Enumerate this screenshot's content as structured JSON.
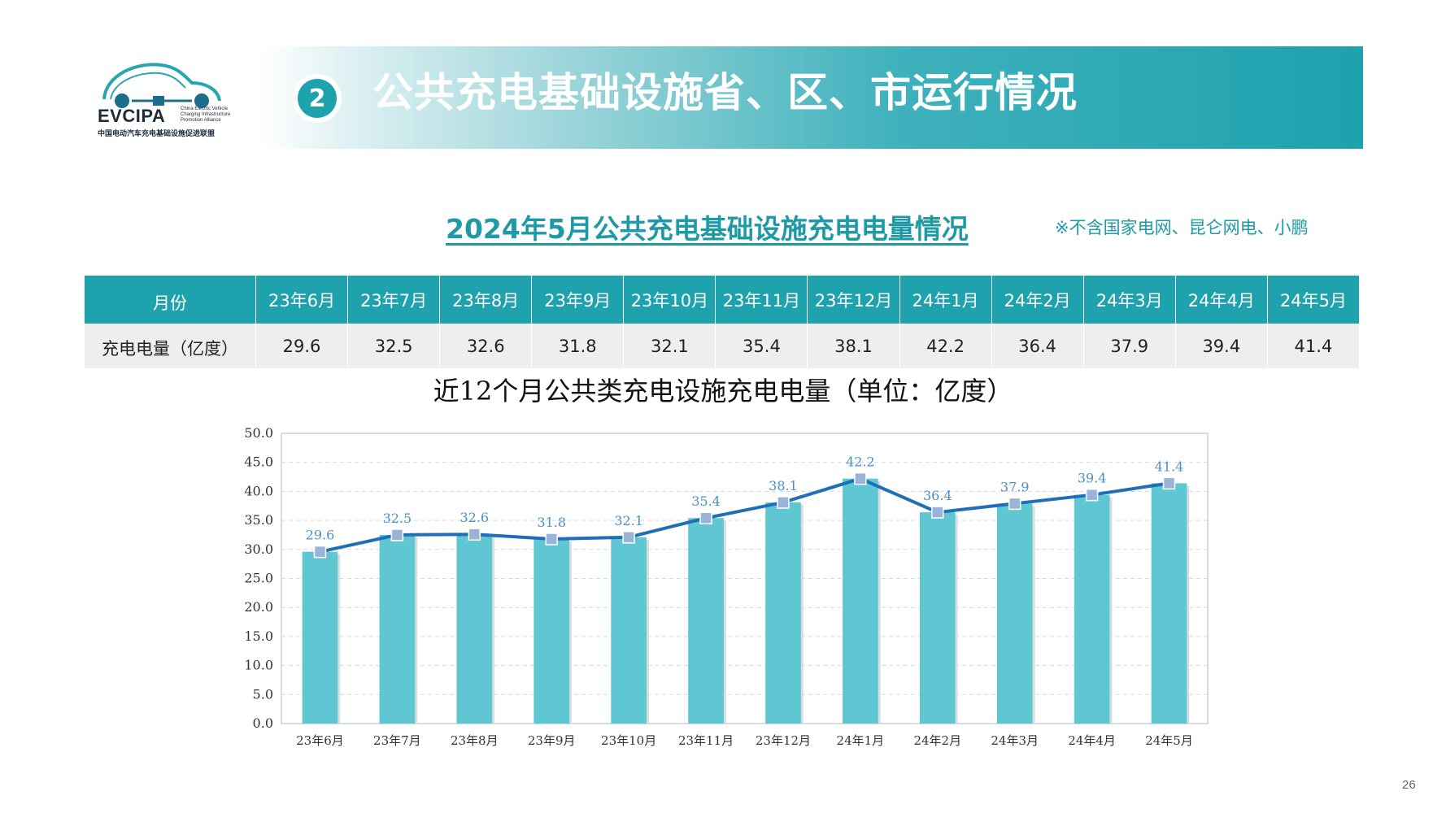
{
  "header": {
    "badge_number": "2",
    "title": "公共充电基础设施省、区、市运行情况"
  },
  "logo": {
    "name": "EVCIPA",
    "english": "China Electric Vehicle Charging Infrastructure Promotion Alliance",
    "chinese": "中国电动汽车充电基础设施促进联盟"
  },
  "table_section": {
    "title": "2024年5月公共充电基础设施充电电量情况",
    "note": "※不含国家电网、昆仑网电、小鹏",
    "row_header_month": "月份",
    "row_header_value": "充电电量（亿度）",
    "months": [
      "23年6月",
      "23年7月",
      "23年8月",
      "23年9月",
      "23年10月",
      "23年11月",
      "23年12月",
      "24年1月",
      "24年2月",
      "24年3月",
      "24年4月",
      "24年5月"
    ],
    "values": [
      "29.6",
      "32.5",
      "32.6",
      "31.8",
      "32.1",
      "35.4",
      "38.1",
      "42.2",
      "36.4",
      "37.9",
      "39.4",
      "41.4"
    ]
  },
  "chart_data": {
    "type": "bar",
    "title": "近12个月公共类充电设施充电电量（单位：亿度）",
    "categories": [
      "23年6月",
      "23年7月",
      "23年8月",
      "23年9月",
      "23年10月",
      "23年11月",
      "23年12月",
      "24年1月",
      "24年2月",
      "24年3月",
      "24年4月",
      "24年5月"
    ],
    "values": [
      29.6,
      32.5,
      32.6,
      31.8,
      32.1,
      35.4,
      38.1,
      42.2,
      36.4,
      37.9,
      39.4,
      41.4
    ],
    "data_labels": [
      "29.6",
      "32.5",
      "32.6",
      "31.8",
      "32.1",
      "35.4",
      "38.1",
      "42.2",
      "36.4",
      "37.9",
      "39.4",
      "41.4"
    ],
    "overlay_line": true,
    "ylim": [
      0,
      50
    ],
    "yticks": [
      "0.0",
      "5.0",
      "10.0",
      "15.0",
      "20.0",
      "25.0",
      "30.0",
      "35.0",
      "40.0",
      "45.0",
      "50.0"
    ],
    "grid": true,
    "xlabel": "",
    "ylabel": "",
    "colors": {
      "bar": "#5fc7d2",
      "line": "#1f6fb8",
      "marker": "#9ab3d8",
      "label": "#4a8fc9"
    }
  },
  "page_number": "26",
  "colors": {
    "accent": "#1ea2ae",
    "title_teal": "#1e9aa7"
  }
}
